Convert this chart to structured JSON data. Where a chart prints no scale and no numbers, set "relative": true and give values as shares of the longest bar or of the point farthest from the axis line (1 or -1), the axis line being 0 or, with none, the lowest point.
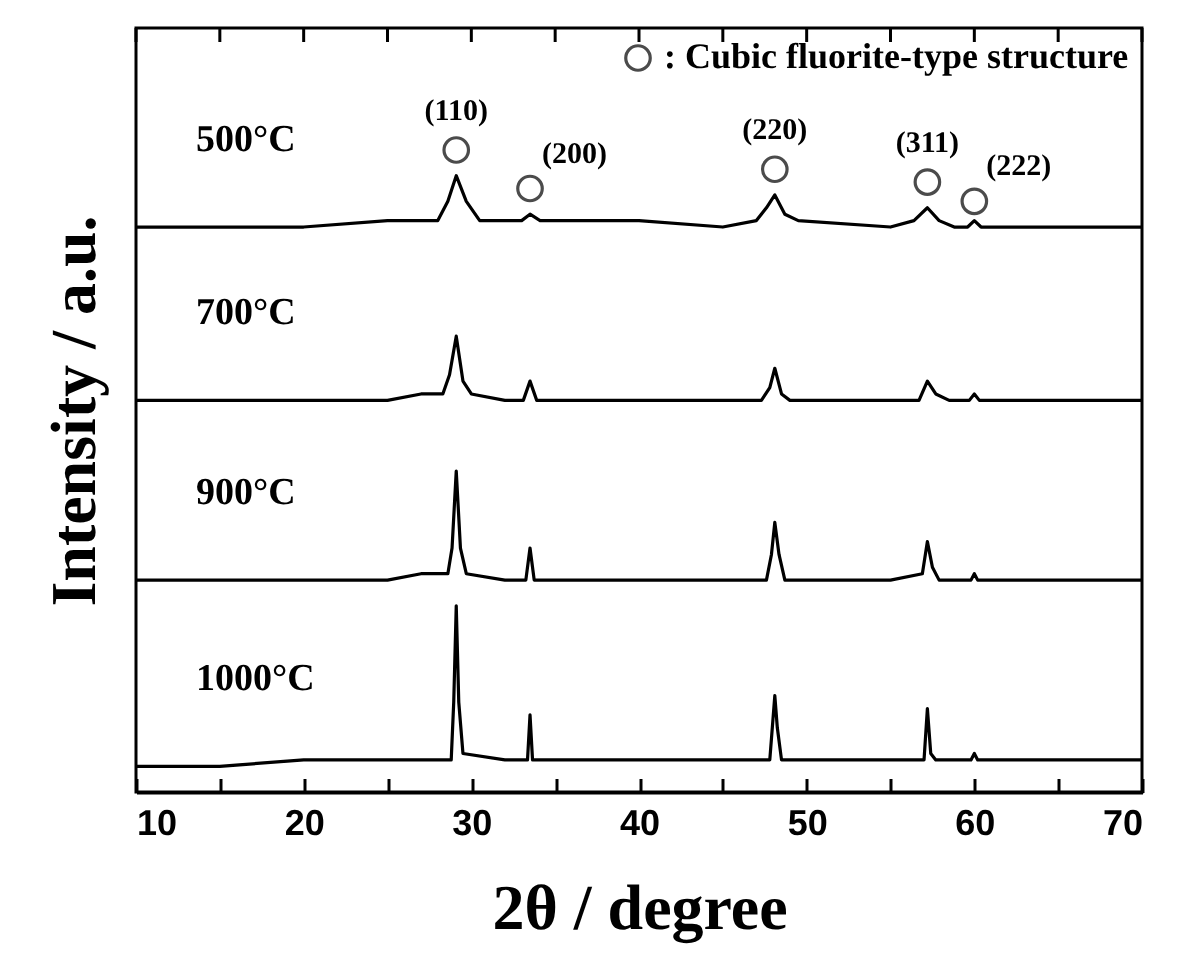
{
  "chart_data": {
    "type": "line",
    "relative": true,
    "xlabel": "2θ / degree",
    "ylabel": "Intensity / a.u.",
    "xlim": [
      10,
      70
    ],
    "xticks": [
      10,
      {
        "value": 15,
        "label": null
      },
      20,
      {
        "value": 25,
        "label": null
      },
      30,
      {
        "value": 35,
        "label": null
      },
      40,
      {
        "value": 45,
        "label": null
      },
      50,
      {
        "value": 55,
        "label": null
      },
      60,
      {
        "value": 65,
        "label": null
      },
      70
    ],
    "grid": false,
    "legend": "top right",
    "line_style": "solid",
    "marker": "none",
    "annotations": [
      "(110)",
      "(200)",
      "(220)",
      "(311)",
      "(222)"
    ],
    "series": [
      {
        "name": "500°C",
        "color": "#000000",
        "x": [
          10,
          15,
          20,
          25,
          27,
          28,
          28.6,
          29.1,
          29.7,
          30.5,
          32,
          33,
          33.5,
          34.1,
          35,
          40,
          45,
          47,
          47.6,
          48.1,
          48.7,
          49.5,
          55,
          56.4,
          57.2,
          57.9,
          58.8,
          59.6,
          60,
          60.4,
          65,
          70
        ],
        "values": [
          0.88,
          0.88,
          0.88,
          0.89,
          0.89,
          0.89,
          0.92,
          0.96,
          0.92,
          0.89,
          0.89,
          0.89,
          0.9,
          0.89,
          0.89,
          0.89,
          0.88,
          0.89,
          0.91,
          0.93,
          0.9,
          0.89,
          0.88,
          0.89,
          0.91,
          0.89,
          0.88,
          0.88,
          0.89,
          0.88,
          0.88,
          0.88
        ]
      },
      {
        "name": "700°C",
        "color": "#000000",
        "x": [
          10,
          15,
          20,
          25,
          27,
          28.3,
          28.7,
          29.1,
          29.5,
          30,
          32,
          33.1,
          33.5,
          33.9,
          35,
          40,
          45,
          47.3,
          47.8,
          48.1,
          48.5,
          49,
          55,
          56.7,
          57.2,
          57.7,
          58.5,
          59.7,
          60,
          60.3,
          65,
          70
        ],
        "values": [
          0.61,
          0.61,
          0.61,
          0.61,
          0.62,
          0.62,
          0.65,
          0.71,
          0.64,
          0.62,
          0.61,
          0.61,
          0.64,
          0.61,
          0.61,
          0.61,
          0.61,
          0.61,
          0.63,
          0.66,
          0.62,
          0.61,
          0.61,
          0.61,
          0.64,
          0.62,
          0.61,
          0.61,
          0.62,
          0.61,
          0.61,
          0.61
        ]
      },
      {
        "name": "900°C",
        "color": "#000000",
        "x": [
          10,
          15,
          20,
          25,
          27,
          28.6,
          28.85,
          29.1,
          29.35,
          29.7,
          32,
          33.25,
          33.5,
          33.75,
          35,
          40,
          45,
          47.6,
          47.9,
          48.1,
          48.35,
          48.7,
          55,
          56.9,
          57.2,
          57.5,
          57.9,
          59.8,
          60,
          60.2,
          65,
          70
        ],
        "values": [
          0.33,
          0.33,
          0.33,
          0.33,
          0.34,
          0.34,
          0.38,
          0.5,
          0.38,
          0.34,
          0.33,
          0.33,
          0.38,
          0.33,
          0.33,
          0.33,
          0.33,
          0.33,
          0.37,
          0.42,
          0.37,
          0.33,
          0.33,
          0.34,
          0.39,
          0.35,
          0.33,
          0.33,
          0.34,
          0.33,
          0.33,
          0.33
        ]
      },
      {
        "name": "1000°C",
        "color": "#000000",
        "x": [
          10,
          15,
          20,
          25,
          27,
          28.8,
          28.95,
          29.1,
          29.25,
          29.5,
          32,
          33.35,
          33.5,
          33.65,
          35,
          40,
          45,
          47.8,
          47.95,
          48.1,
          48.25,
          48.5,
          55,
          57.0,
          57.2,
          57.4,
          57.7,
          59.8,
          60,
          60.2,
          65,
          70
        ],
        "values": [
          0.04,
          0.04,
          0.05,
          0.05,
          0.05,
          0.05,
          0.14,
          0.29,
          0.14,
          0.06,
          0.05,
          0.05,
          0.12,
          0.05,
          0.05,
          0.05,
          0.05,
          0.05,
          0.1,
          0.15,
          0.1,
          0.05,
          0.05,
          0.05,
          0.13,
          0.06,
          0.05,
          0.05,
          0.06,
          0.05,
          0.05,
          0.05
        ]
      },
      {
        "type": "scatter",
        "name": ": Cubic fluorite-type structure",
        "color": "#000000",
        "marker": "circle",
        "x": [
          29.1,
          33.5,
          48.1,
          57.2,
          60
        ],
        "values": [
          1.0,
          0.94,
          0.97,
          0.95,
          0.92
        ]
      }
    ]
  }
}
